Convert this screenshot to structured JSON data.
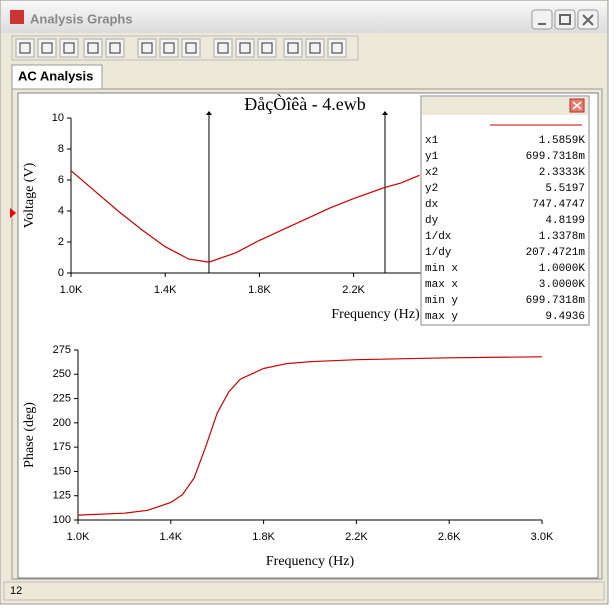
{
  "window": {
    "title": "Analysis Graphs",
    "tab": "AC Analysis",
    "status": "12"
  },
  "readout": {
    "rows": [
      [
        "x1",
        "1.5859K"
      ],
      [
        "y1",
        "699.7318m"
      ],
      [
        "x2",
        "2.3333K"
      ],
      [
        "y2",
        "5.5197"
      ],
      [
        "dx",
        "747.4747"
      ],
      [
        "dy",
        "4.8199"
      ],
      [
        "1/dx",
        "1.3378m"
      ],
      [
        "1/dy",
        "207.4721m"
      ],
      [
        "min x",
        "1.0000K"
      ],
      [
        "max x",
        "3.0000K"
      ],
      [
        "min y",
        "699.7318m"
      ],
      [
        "max y",
        "9.4936"
      ]
    ]
  },
  "chart_data": [
    {
      "type": "line",
      "title": "ĐåçÒîêà - 4.ewb",
      "xlabel": "Frequency (Hz)",
      "ylabel": "Voltage (V)",
      "xlim": [
        1000,
        3000
      ],
      "ylim": [
        0,
        10
      ],
      "xticks": [
        {
          "value": 1000,
          "label": "1.0K"
        },
        {
          "value": 1400,
          "label": "1.4K"
        },
        {
          "value": 1800,
          "label": "1.8K"
        },
        {
          "value": 2200,
          "label": "2.2K"
        }
      ],
      "yticks": [
        0,
        2,
        4,
        6,
        8,
        10
      ],
      "cursors": [
        1585.9,
        2333.3
      ],
      "x": [
        1000,
        1100,
        1200,
        1300,
        1400,
        1500,
        1586,
        1700,
        1800,
        1900,
        2000,
        2100,
        2200,
        2333,
        2400,
        2480
      ],
      "series": [
        {
          "color": "#cc0000",
          "values": [
            6.6,
            5.3,
            4.0,
            2.8,
            1.7,
            0.9,
            0.7,
            1.3,
            2.1,
            2.8,
            3.5,
            4.2,
            4.8,
            5.52,
            5.8,
            6.3
          ]
        }
      ]
    },
    {
      "type": "line",
      "xlabel": "Frequency (Hz)",
      "ylabel": "Phase (deg)",
      "xlim": [
        1000,
        3000
      ],
      "ylim": [
        100,
        275
      ],
      "xticks": [
        {
          "value": 1000,
          "label": "1.0K"
        },
        {
          "value": 1400,
          "label": "1.4K"
        },
        {
          "value": 1800,
          "label": "1.8K"
        },
        {
          "value": 2200,
          "label": "2.2K"
        },
        {
          "value": 2600,
          "label": "2.6K"
        },
        {
          "value": 3000,
          "label": "3.0K"
        }
      ],
      "yticks": [
        100,
        125,
        150,
        175,
        200,
        225,
        250,
        275
      ],
      "x": [
        1000,
        1200,
        1300,
        1400,
        1450,
        1500,
        1550,
        1600,
        1650,
        1700,
        1800,
        1900,
        2000,
        2200,
        2600,
        3000
      ],
      "series": [
        {
          "color": "#cc0000",
          "values": [
            105,
            107,
            110,
            118,
            126,
            143,
            175,
            210,
            232,
            245,
            256,
            261,
            263,
            265,
            267,
            268
          ]
        }
      ]
    }
  ]
}
